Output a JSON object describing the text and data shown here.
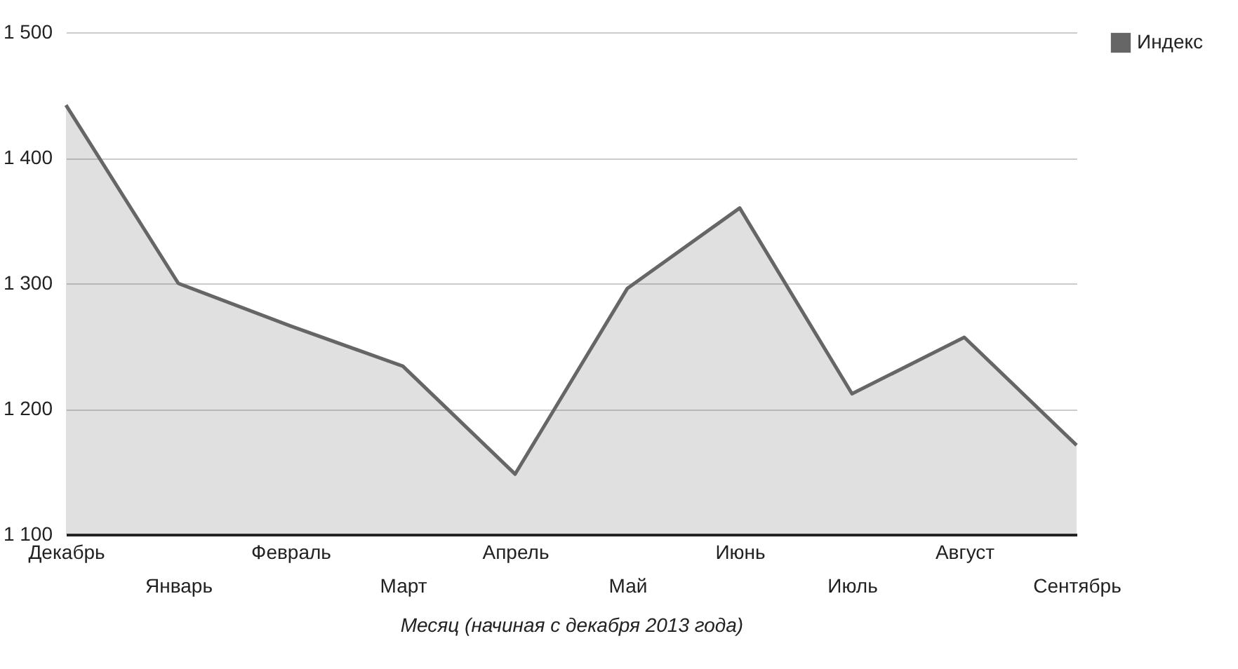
{
  "chart_data": {
    "type": "area",
    "xlabel": "Месяц (начиная с декабря 2013 года)",
    "categories": [
      "Декабрь",
      "Январь",
      "Февраль",
      "Март",
      "Апрель",
      "Май",
      "Июнь",
      "Июль",
      "Август",
      "Сентябрь"
    ],
    "series": [
      {
        "name": "Индекс",
        "color": "#666666",
        "values": [
          1442,
          1300,
          1266,
          1234,
          1148,
          1296,
          1360,
          1212,
          1257,
          1171
        ]
      }
    ],
    "ylim": [
      1100,
      1500
    ],
    "yticks": [
      {
        "value": 1100,
        "label": "1 100"
      },
      {
        "value": 1200,
        "label": "1 200"
      },
      {
        "value": 1300,
        "label": "1 300"
      },
      {
        "value": 1400,
        "label": "1 400"
      },
      {
        "value": 1500,
        "label": "1 500"
      }
    ],
    "grid": "y",
    "legend": "top right"
  }
}
